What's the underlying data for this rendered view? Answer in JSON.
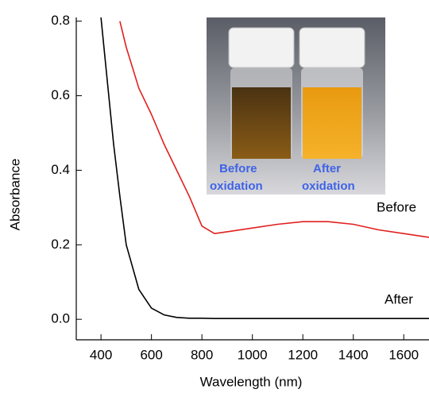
{
  "chart_data": {
    "type": "line",
    "x_label": "Wavelength (nm)",
    "y_label": "Absorbance",
    "x": [
      400,
      450,
      475,
      500,
      550,
      600,
      650,
      700,
      750,
      800,
      850,
      900,
      1000,
      1100,
      1200,
      1300,
      1400,
      1500,
      1600,
      1700
    ],
    "series": [
      {
        "name": "Before",
        "color": "#e0201e",
        "values": [
          null,
          null,
          0.8,
          0.73,
          0.62,
          0.55,
          0.47,
          0.4,
          0.33,
          0.25,
          0.23,
          0.235,
          0.245,
          0.255,
          0.262,
          0.262,
          0.255,
          0.24,
          0.23,
          0.22
        ]
      },
      {
        "name": "After",
        "color": "#000000",
        "values": [
          0.81,
          0.47,
          0.33,
          0.2,
          0.08,
          0.03,
          0.012,
          0.005,
          0.003,
          0.003,
          0.002,
          0.002,
          0.002,
          0.002,
          0.002,
          0.002,
          0.002,
          0.002,
          0.002,
          0.002
        ]
      }
    ],
    "xlim": [
      302,
      1700
    ],
    "ylim": [
      -0.055,
      0.81
    ],
    "xticks": [
      400,
      600,
      800,
      1000,
      1200,
      1400,
      1600
    ],
    "yticks": [
      {
        "value": 0,
        "label": "0.0"
      },
      0.2,
      0.4,
      0.6,
      0.8
    ],
    "inset_labels": [
      [
        "Before",
        "oxidation"
      ],
      [
        "After",
        "oxidation"
      ]
    ]
  }
}
